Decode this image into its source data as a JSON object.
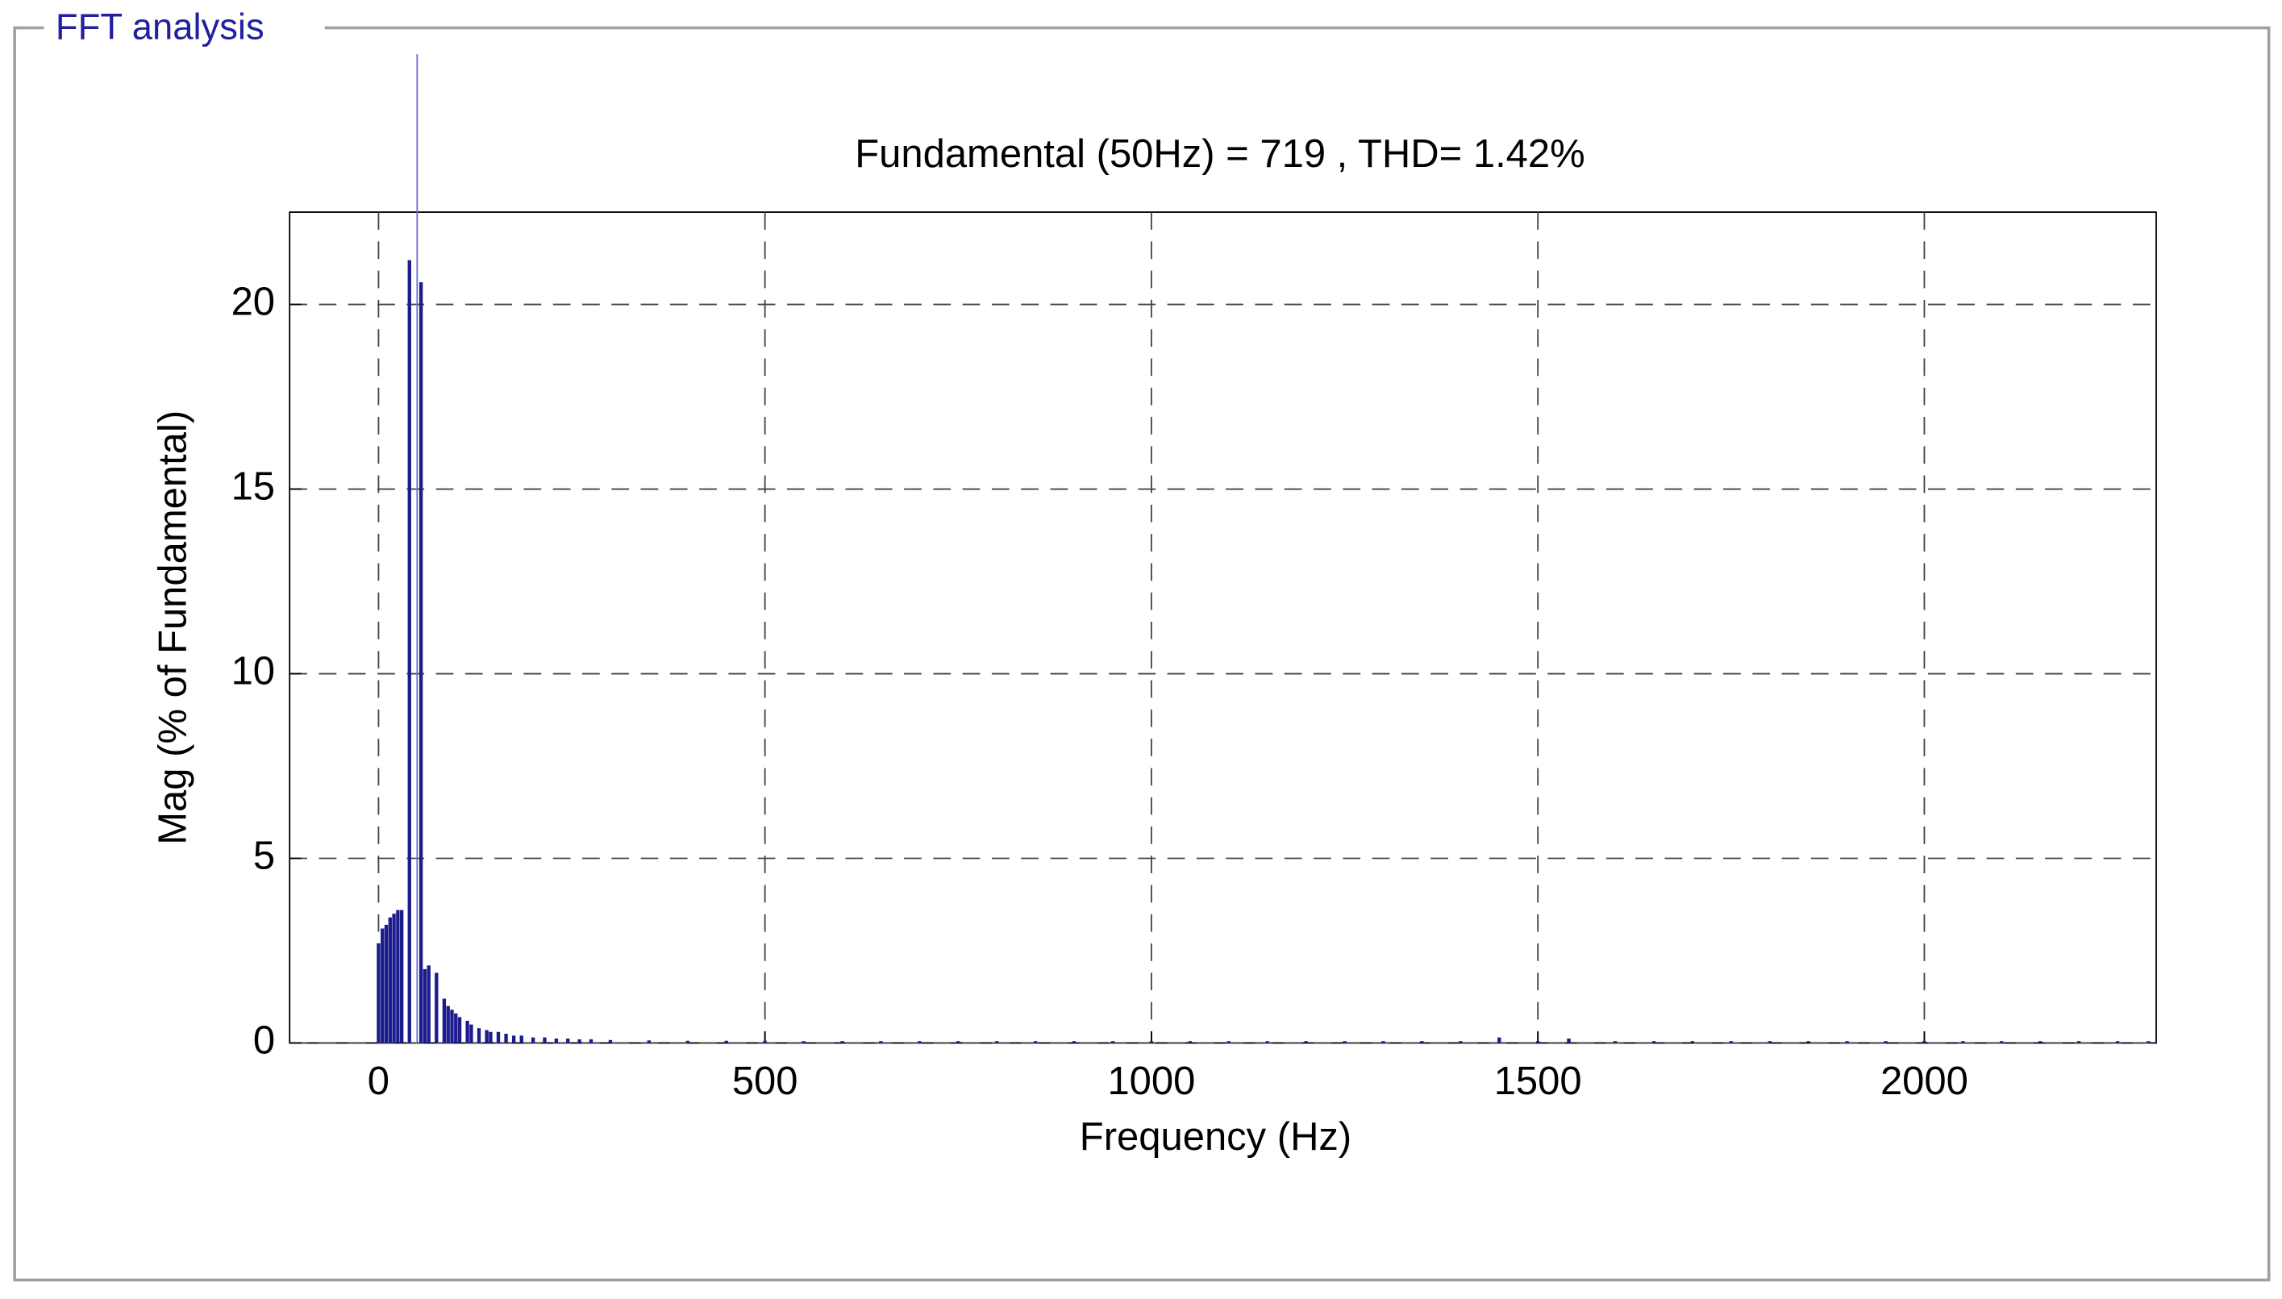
{
  "panel_title": "FFT analysis",
  "chart_data": {
    "type": "bar",
    "title": "Fundamental (50Hz) = 719 , THD= 1.42%",
    "x_label": "Frequency (Hz)",
    "y_label": "Mag (% of Fundamental)",
    "color": "#1c1c8c",
    "fundamental_line": 50,
    "fundamental_line_color": "#6a6ad0",
    "x": [
      0,
      5,
      10,
      15,
      20,
      25,
      30,
      40,
      55,
      60,
      65,
      75,
      85,
      90,
      95,
      100,
      105,
      115,
      120,
      130,
      140,
      145,
      155,
      165,
      175,
      185,
      200,
      215,
      230,
      245,
      260,
      275,
      300,
      350,
      400,
      450,
      500,
      550,
      600,
      650,
      700,
      750,
      800,
      850,
      900,
      950,
      1000,
      1050,
      1100,
      1150,
      1200,
      1250,
      1300,
      1350,
      1400,
      1450,
      1500,
      1540,
      1600,
      1650,
      1700,
      1750,
      1800,
      1850,
      1900,
      1950,
      2000,
      2050,
      2100,
      2150,
      2200,
      2250,
      2290
    ],
    "values": [
      2.7,
      3.1,
      3.2,
      3.4,
      3.5,
      3.6,
      3.6,
      21.2,
      20.6,
      2.0,
      2.1,
      1.9,
      1.2,
      1.0,
      0.9,
      0.8,
      0.7,
      0.6,
      0.5,
      0.4,
      0.35,
      0.3,
      0.3,
      0.25,
      0.2,
      0.2,
      0.15,
      0.15,
      0.12,
      0.12,
      0.1,
      0.1,
      0.08,
      0.07,
      0.06,
      0.06,
      0.06,
      0.05,
      0.05,
      0.05,
      0.05,
      0.05,
      0.05,
      0.05,
      0.05,
      0.05,
      0.05,
      0.05,
      0.05,
      0.05,
      0.05,
      0.05,
      0.05,
      0.05,
      0.05,
      0.15,
      0.05,
      0.12,
      0.05,
      0.05,
      0.05,
      0.05,
      0.05,
      0.05,
      0.05,
      0.05,
      0.05,
      0.05,
      0.05,
      0.05,
      0.05,
      0.05,
      0.05
    ],
    "xlim": [
      -115,
      2300
    ],
    "ylim": [
      0,
      22.5
    ],
    "xticks": [
      0,
      500,
      1000,
      1500,
      2000
    ],
    "yticks": [
      0,
      5,
      10,
      15,
      20
    ],
    "grid": true
  }
}
